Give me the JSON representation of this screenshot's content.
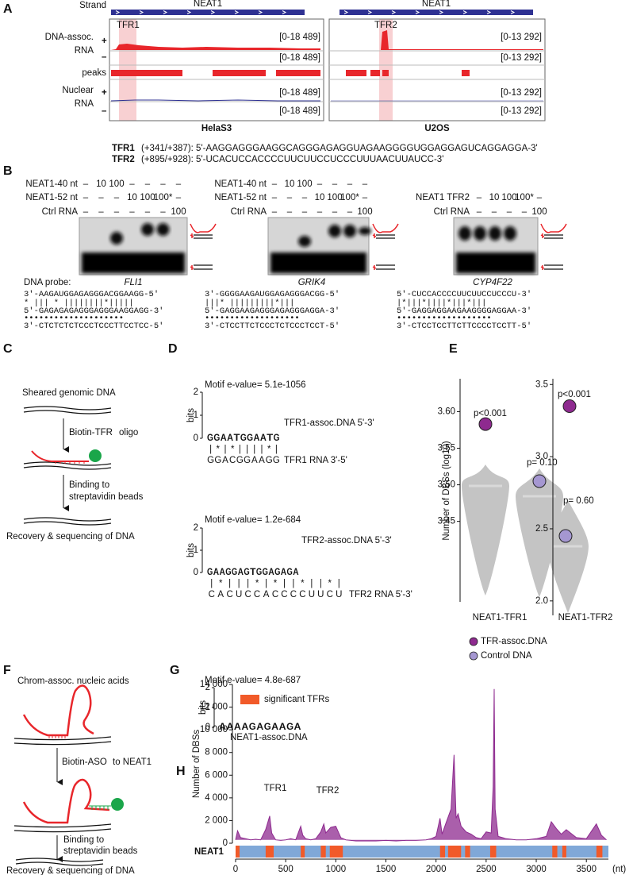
{
  "panel_labels": [
    "A",
    "B",
    "C",
    "D",
    "E",
    "F",
    "G",
    "H"
  ],
  "panel_a": {
    "gene": [
      "NEAT1",
      "NEAT1"
    ],
    "strand": "Strand",
    "dna_rna": [
      "DNA-assoc.",
      "RNA"
    ],
    "nuclear_rna": [
      "Nuclear",
      "RNA"
    ],
    "plus": "+",
    "minus": "–",
    "peaks": "peaks",
    "regions": [
      "TFR1",
      "TFR2"
    ],
    "ranges": [
      [
        "[0-18 489]",
        "[0-18 489]",
        "[0-18 489]",
        "[0-18 489]"
      ],
      [
        "[0-13 292]",
        "[0-13 292]",
        "[0-13 292]",
        "[0-13 292]"
      ]
    ],
    "cells": [
      "HelaS3",
      "U2OS"
    ],
    "sequences": [
      {
        "name": "TFR1",
        "text": "(+341/+387): 5'-AAGGAGGGAAGGCAGGGAGAGGUAGAAGGGGUGGAGGAGUCAGGAGGA-3'"
      },
      {
        "name": "TFR2",
        "text": "(+895/+928): 5'-UCACUCCACCCCUUCUUCCUCCCUUUAACUUAUCC-3'"
      }
    ]
  },
  "panel_b": {
    "probe_label": "DNA probe:",
    "gels": [
      {
        "rows": [
          {
            "label": "NEAT1-40 nt",
            "cells": [
              "–",
              "10",
              "100",
              "–",
              "–",
              "–",
              "–"
            ]
          },
          {
            "label": "NEAT1-52 nt",
            "cells": [
              "–",
              "–",
              "–",
              "10",
              "100",
              "100*",
              "–"
            ]
          },
          {
            "label": "Ctrl RNA",
            "cells": [
              "–",
              "–",
              "–",
              "–",
              "–",
              "–",
              "100"
            ]
          }
        ],
        "probe": "FLI1",
        "sequence": [
          "3'-AAGAUGGAGAGGGACGGAAGG-5'",
          " * ||| * ||||||||*||||| ",
          "5'-GAGAGAGAGGGAGGGAAGGAGG-3'",
          "  ••••••••••••••••••••  ",
          "3'-CTCTCTCTCCCTCCCTTCCTCC-5'"
        ]
      },
      {
        "rows": [
          {
            "label": "NEAT1-40 nt",
            "cells": [
              "–",
              "10",
              "100",
              "–",
              "–",
              "–",
              "–"
            ]
          },
          {
            "label": "NEAT1-52 nt",
            "cells": [
              "–",
              "–",
              "–",
              "10",
              "100",
              "100*",
              "–"
            ]
          },
          {
            "label": "Ctrl RNA",
            "cells": [
              "–",
              "–",
              "–",
              "–",
              "–",
              "–",
              "100"
            ]
          }
        ],
        "probe": "GRIK4",
        "sequence": [
          "3'-GGGGAAGAUGGAGAGGGACGG-5'",
          "   |||* |||||||||*||| ",
          "5'-GAGGAAGAGGGAGAGGGAGGA-3'",
          "  •••••••••••••••••••  ",
          "3'-CTCCTTCTCCCTCTCCCTCCT-5'"
        ]
      },
      {
        "rows": [
          {
            "label": "NEAT1 TFR2",
            "cells": [
              "–",
              "10",
              "100",
              "100*",
              "–"
            ]
          },
          {
            "label": "Ctrl RNA",
            "cells": [
              "–",
              "–",
              "–",
              "–",
              "100"
            ]
          }
        ],
        "probe": "CYP4F22",
        "sequence": [
          "5'-CUCCACCCCUUCUUCCUCCCU-3'",
          "   |*|||*||||*|||*||| ",
          "5'-GAGGAGGAAGAAGGGGAGGAA-3'",
          "  •••••••••••••••••••  ",
          "3'-CTCCTCCTTCTTCCCCTCCTT-5'"
        ]
      }
    ]
  },
  "panel_c": {
    "steps": [
      "Sheared genomic DNA",
      "Binding to",
      "streptavidin beads",
      "Recovery & sequencing of DNA"
    ],
    "oligo": [
      "Biotin-TFR",
      "oligo"
    ]
  },
  "panel_d": {
    "bits_label": "bits",
    "bits_ticks": [
      0,
      1,
      2
    ],
    "motifs": [
      {
        "evalue": "Motif e-value= 5.1e-1056",
        "logo": [
          "G",
          "G",
          "A",
          "A",
          "T",
          "G",
          "G",
          "A",
          "A",
          "T",
          "G"
        ],
        "dna_label": "TFR1-assoc.DNA 5'-3'",
        "pairing": [
          "|",
          "*",
          "|",
          "*",
          "|",
          "|",
          "|",
          "|",
          "*",
          "|"
        ],
        "rna": [
          "G",
          "G",
          "A",
          "C",
          "G",
          "G",
          "A",
          "A",
          "G",
          "G"
        ],
        "rna_label": "TFR1 RNA 3'-5'"
      },
      {
        "evalue": "Motif e-value= 1.2e-684",
        "logo": [
          "G",
          "A",
          "A",
          "G",
          "G",
          "A",
          "G",
          "T",
          "G",
          "G",
          "A",
          "G",
          "A",
          "G",
          "A"
        ],
        "dna_label": "TFR2-assoc.DNA 5'-3'",
        "pairing": [
          "|",
          "*",
          "|",
          "|",
          "|",
          "*",
          "|",
          "*",
          "|",
          "|",
          "*",
          "|",
          "|",
          "*",
          "|"
        ],
        "rna": [
          "C",
          "A",
          "C",
          "U",
          "C",
          "C",
          "A",
          "C",
          "C",
          "C",
          "C",
          "U",
          "U",
          "C",
          "U"
        ],
        "rna_label": "TFR2 RNA 5'-3'"
      }
    ]
  },
  "panel_f": {
    "steps": [
      "Chrom-assoc. nucleic acids",
      "Binding to",
      "streptavidin beads",
      "Recovery & sequencing of DNA"
    ],
    "aso": [
      "Biotin-ASO",
      "to NEAT1"
    ]
  },
  "panel_g": {
    "evalue": "Motif e-value= 4.8e-687",
    "logo": [
      "A",
      "A",
      "A",
      "A",
      "G",
      "A",
      "G",
      "A",
      "A",
      "G",
      "A"
    ],
    "label": "NEAT1-assoc.DNA"
  },
  "chart_data": [
    {
      "type": "scatter",
      "categories": [
        "NEAT1-TFR1"
      ],
      "y_label": "Number of DBSs (log10)",
      "series": [
        {
          "name": "TFR-assoc.DNA",
          "color": "#8e2a8f",
          "values": [
            3.583
          ]
        },
        {
          "name": "Control DNA",
          "color": "#a597d1",
          "values": [
            3.505
          ]
        }
      ],
      "annotations": [
        "p<0.001",
        "p= 0.10"
      ],
      "ylim": [
        3.34,
        3.645
      ],
      "yticks": [
        3.45,
        {
          "value": 3.5,
          "label": "3.50"
        },
        3.55,
        {
          "value": 3.6,
          "label": "3.60"
        }
      ]
    },
    {
      "type": "scatter",
      "categories": [
        "NEAT1-TFR2"
      ],
      "series": [
        {
          "color": "#8e2a8f",
          "values": [
            3.35
          ]
        },
        {
          "color": "#a597d1",
          "values": [
            2.45
          ]
        }
      ],
      "annotations": [
        "p<0.001",
        "p= 0.60"
      ],
      "ylim": [
        1.9,
        3.54
      ],
      "yticks": [
        {
          "value": 2,
          "label": "2.0"
        },
        2.5,
        {
          "value": 3,
          "label": "3.0"
        },
        3.5
      ]
    },
    {
      "type": "area",
      "y_label": "Number of DBSs",
      "color": "#8e2a8f",
      "gene": "NEAT1",
      "gene_color": "#80a8d8",
      "x_unit": "(nt)",
      "annotations": [
        "TFR1",
        "TFR2"
      ],
      "regions": {
        "name": "significant TFRs",
        "color": "#f15a29",
        "spans": [
          [
            0,
            40
          ],
          [
            300,
            380
          ],
          [
            650,
            690
          ],
          [
            850,
            900
          ],
          [
            940,
            1070
          ],
          [
            2040,
            2090
          ],
          [
            2120,
            2250
          ],
          [
            2290,
            2340
          ],
          [
            2540,
            2600
          ],
          [
            3160,
            3210
          ],
          [
            3260,
            3300
          ],
          [
            3600,
            3660
          ]
        ]
      },
      "x": [
        0,
        20,
        50,
        100,
        150,
        200,
        250,
        300,
        340,
        360,
        400,
        450,
        500,
        550,
        600,
        650,
        670,
        700,
        750,
        800,
        850,
        880,
        900,
        950,
        1000,
        1050,
        1100,
        1150,
        1200,
        1300,
        1400,
        1500,
        1600,
        1700,
        1800,
        1900,
        1950,
        2000,
        2040,
        2060,
        2100,
        2150,
        2180,
        2200,
        2220,
        2250,
        2300,
        2350,
        2400,
        2450,
        2500,
        2550,
        2570,
        2580,
        2590,
        2620,
        2700,
        2800,
        2900,
        3000,
        3100,
        3150,
        3200,
        3250,
        3300,
        3400,
        3500,
        3600,
        3650,
        3700
      ],
      "values": [
        300,
        1100,
        500,
        400,
        300,
        350,
        300,
        1200,
        2400,
        900,
        300,
        250,
        300,
        400,
        300,
        1500,
        700,
        400,
        300,
        400,
        1000,
        1700,
        900,
        1400,
        1500,
        500,
        300,
        250,
        200,
        200,
        200,
        250,
        200,
        250,
        250,
        300,
        400,
        600,
        2200,
        800,
        1800,
        3000,
        7800,
        2200,
        2600,
        1500,
        1000,
        800,
        500,
        400,
        1000,
        900,
        5000,
        13600,
        3000,
        600,
        400,
        300,
        300,
        400,
        600,
        1900,
        1300,
        800,
        1200,
        500,
        400,
        1700,
        700,
        300
      ],
      "xlim": [
        0,
        3720
      ],
      "ylim": [
        0,
        14000
      ],
      "xticks": [
        0,
        500,
        1000,
        1500,
        2000,
        2500,
        3000,
        3500
      ],
      "yticks": [
        0,
        {
          "value": 2000,
          "label": "2 000"
        },
        {
          "value": 4000,
          "label": "4 000"
        },
        {
          "value": 6000,
          "label": "6 000"
        },
        {
          "value": 8000,
          "label": "8 000"
        },
        {
          "value": 10000,
          "label": "10 000"
        },
        {
          "value": 12000,
          "label": "12 000"
        },
        {
          "value": 14000,
          "label": "14 000"
        }
      ]
    }
  ]
}
